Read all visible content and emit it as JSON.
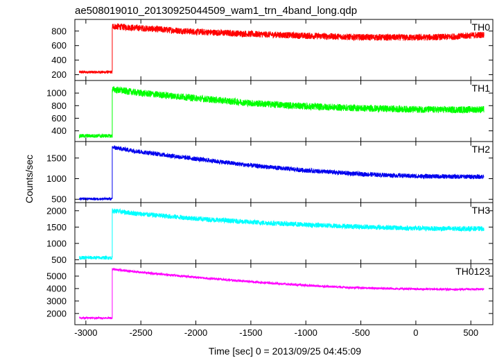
{
  "chart_data": {
    "type": "line",
    "title": "ae508019010_20130925044509_wam1_trn_4band_long.qdp",
    "xlabel": "Time [sec] 0 = 2013/09/25 04:45:09",
    "ylabel": "Counts/sec",
    "xlim": [
      -3100,
      700
    ],
    "xticks": [
      -3000,
      -2500,
      -2000,
      -1500,
      -1000,
      -500,
      0,
      500
    ],
    "event_time": -2760,
    "x_start": -3060,
    "x_end": 620,
    "grid": false,
    "panels": [
      {
        "label": "TH0",
        "color": "#ff0000",
        "ylim": [
          120,
          960
        ],
        "yticks": [
          200,
          400,
          600,
          800
        ],
        "pre_level": 235,
        "pre_noise": 40,
        "post_points": [
          [
            -2760,
            865
          ],
          [
            -2500,
            840
          ],
          [
            -2000,
            790
          ],
          [
            -1500,
            760
          ],
          [
            -1000,
            735
          ],
          [
            -500,
            715
          ],
          [
            0,
            710
          ],
          [
            300,
            720
          ],
          [
            620,
            750
          ]
        ],
        "post_noise": 90
      },
      {
        "label": "TH1",
        "color": "#00ff00",
        "ylim": [
          230,
          1200
        ],
        "yticks": [
          400,
          600,
          800,
          1000
        ],
        "pre_level": 320,
        "pre_noise": 60,
        "post_points": [
          [
            -2760,
            1060
          ],
          [
            -2500,
            1000
          ],
          [
            -2000,
            920
          ],
          [
            -1500,
            840
          ],
          [
            -1000,
            790
          ],
          [
            -500,
            760
          ],
          [
            0,
            740
          ],
          [
            300,
            735
          ],
          [
            620,
            740
          ]
        ],
        "post_noise": 110
      },
      {
        "label": "TH2",
        "color": "#0000ee",
        "ylim": [
          420,
          1900
        ],
        "yticks": [
          500,
          1000,
          1500
        ],
        "pre_level": 510,
        "pre_noise": 60,
        "post_points": [
          [
            -2760,
            1760
          ],
          [
            -2500,
            1650
          ],
          [
            -2000,
            1480
          ],
          [
            -1500,
            1320
          ],
          [
            -1000,
            1200
          ],
          [
            -500,
            1110
          ],
          [
            0,
            1060
          ],
          [
            300,
            1050
          ],
          [
            620,
            1050
          ]
        ],
        "post_noise": 110
      },
      {
        "label": "TH3",
        "color": "#00ffff",
        "ylim": [
          380,
          2250
        ],
        "yticks": [
          500,
          1000,
          1500,
          2000
        ],
        "pre_level": 560,
        "pre_noise": 110,
        "post_points": [
          [
            -2760,
            2000
          ],
          [
            -2500,
            1900
          ],
          [
            -2000,
            1760
          ],
          [
            -1500,
            1650
          ],
          [
            -1000,
            1570
          ],
          [
            -500,
            1510
          ],
          [
            0,
            1460
          ],
          [
            300,
            1450
          ],
          [
            620,
            1450
          ]
        ],
        "post_noise": 150
      },
      {
        "label": "TH0123",
        "color": "#ff00ff",
        "ylim": [
          1100,
          6000
        ],
        "yticks": [
          2000,
          3000,
          4000,
          5000
        ],
        "pre_level": 1640,
        "pre_noise": 150,
        "post_points": [
          [
            -2760,
            5550
          ],
          [
            -2500,
            5300
          ],
          [
            -2000,
            4900
          ],
          [
            -1500,
            4550
          ],
          [
            -1000,
            4250
          ],
          [
            -500,
            4050
          ],
          [
            0,
            3960
          ],
          [
            300,
            3940
          ],
          [
            620,
            3950
          ]
        ],
        "post_noise": 180
      }
    ]
  }
}
